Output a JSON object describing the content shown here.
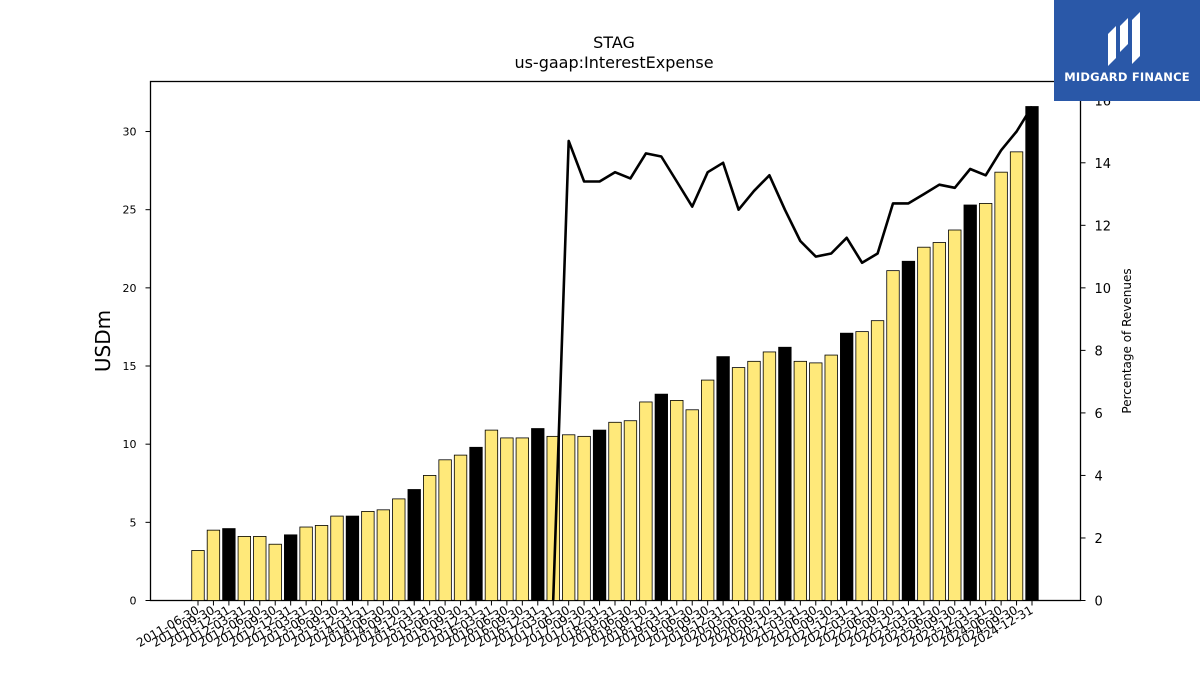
{
  "logo": {
    "text": "MIDGARD FINANCE"
  },
  "chart_data": {
    "type": "bar",
    "title": "STAG",
    "subtitle": "us-gaap:InterestExpense",
    "ylabel": "USDm",
    "y2label": "Percentage of Revenues",
    "ylim": [
      0,
      33.2
    ],
    "y2lim": [
      0,
      16.6
    ],
    "yticks": [
      0,
      5,
      10,
      15,
      20,
      25,
      30
    ],
    "y2ticks": [
      0,
      2,
      4,
      6,
      8,
      10,
      12,
      14,
      16
    ],
    "colors": {
      "quarter": "#ffe97a",
      "annual": "#000000",
      "line": "#000000"
    },
    "categories": [
      "2011-06-30",
      "2011-09-30",
      "2011-12-31",
      "2012-03-31",
      "2012-06-30",
      "2012-09-30",
      "2012-12-31",
      "2013-03-31",
      "2013-06-30",
      "2013-09-30",
      "2013-12-31",
      "2014-03-31",
      "2014-06-30",
      "2014-09-30",
      "2014-12-31",
      "2015-03-31",
      "2015-06-30",
      "2015-09-30",
      "2015-12-31",
      "2016-03-31",
      "2016-06-30",
      "2016-09-30",
      "2016-12-31",
      "2017-03-31",
      "2017-06-30",
      "2017-09-30",
      "2017-12-31",
      "2018-03-31",
      "2018-06-30",
      "2018-09-30",
      "2018-12-31",
      "2019-03-31",
      "2019-06-30",
      "2019-09-30",
      "2019-12-31",
      "2020-03-31",
      "2020-06-30",
      "2020-09-30",
      "2020-12-31",
      "2021-03-31",
      "2021-06-30",
      "2021-09-30",
      "2021-12-31",
      "2022-03-31",
      "2022-06-30",
      "2022-09-30",
      "2022-12-31",
      "2023-03-31",
      "2023-06-30",
      "2023-09-30",
      "2023-12-31",
      "2024-03-31",
      "2024-06-30",
      "2024-09-30",
      "2024-12-31"
    ],
    "series": [
      {
        "type": "bar",
        "values": [
          3.2,
          4.5,
          4.6,
          4.1,
          4.1,
          3.6,
          4.2,
          4.7,
          4.8,
          5.4,
          5.4,
          5.7,
          5.8,
          6.5,
          7.1,
          8.0,
          9.0,
          9.3,
          9.8,
          10.9,
          10.4,
          10.4,
          11.0,
          10.5,
          10.6,
          10.5,
          10.9,
          11.4,
          11.5,
          12.7,
          13.2,
          12.8,
          12.2,
          14.1,
          15.6,
          14.9,
          15.3,
          15.9,
          16.2,
          15.3,
          15.2,
          15.7,
          17.1,
          17.2,
          17.9,
          21.1,
          21.7,
          22.6,
          22.9,
          23.7,
          25.3,
          25.4,
          27.4,
          28.7,
          31.6
        ],
        "annual": [
          false,
          false,
          true,
          false,
          false,
          false,
          true,
          false,
          false,
          false,
          true,
          false,
          false,
          false,
          true,
          false,
          false,
          false,
          true,
          false,
          false,
          false,
          true,
          false,
          false,
          false,
          true,
          false,
          false,
          false,
          true,
          false,
          false,
          false,
          true,
          false,
          false,
          false,
          true,
          false,
          false,
          false,
          true,
          false,
          false,
          false,
          true,
          false,
          false,
          false,
          true,
          false,
          false,
          false,
          true
        ]
      },
      {
        "type": "line",
        "axis": "right",
        "values": [
          null,
          null,
          null,
          null,
          null,
          null,
          null,
          null,
          null,
          null,
          null,
          null,
          null,
          null,
          null,
          null,
          null,
          null,
          null,
          null,
          null,
          null,
          null,
          0,
          14.7,
          13.4,
          13.4,
          13.7,
          13.5,
          14.3,
          14.2,
          13.4,
          12.6,
          13.7,
          14.0,
          12.5,
          13.1,
          13.6,
          12.5,
          11.5,
          11.0,
          11.1,
          11.6,
          10.8,
          11.1,
          12.7,
          12.7,
          13.0,
          13.3,
          13.2,
          13.8,
          13.6,
          14.4,
          15.0,
          15.8
        ]
      }
    ],
    "legend": "none",
    "grid": false
  }
}
